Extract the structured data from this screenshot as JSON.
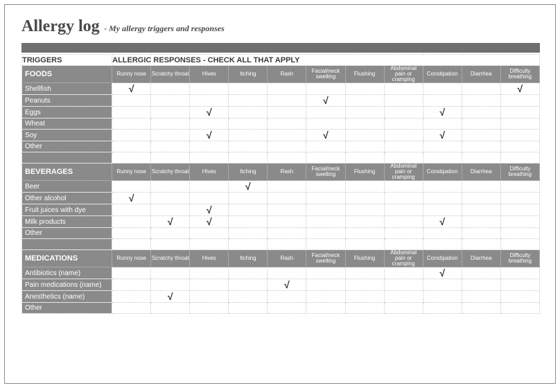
{
  "title": "Allergy log",
  "subtitle": "- My allergy triggers and responses",
  "check_mark": "√",
  "labels": {
    "triggers": "TRIGGERS",
    "responses_header": "ALLERGIC RESPONSES - CHECK ALL THAT APPLY"
  },
  "response_columns": [
    "Runny nose",
    "Scratchy throat",
    "Hives",
    "Itching",
    "Rash",
    "Facial/neck swelling",
    "Flushing",
    "Abdominal pain or cramping",
    "Constipation",
    "Diarrhea",
    "Difficulty breathing"
  ],
  "sections": [
    {
      "name": "FOODS",
      "rows": [
        {
          "label": "Shellfish",
          "checks": [
            1,
            0,
            0,
            0,
            0,
            0,
            0,
            0,
            0,
            0,
            1
          ]
        },
        {
          "label": "Peanuts",
          "checks": [
            0,
            0,
            0,
            0,
            0,
            1,
            0,
            0,
            0,
            0,
            0
          ]
        },
        {
          "label": "Eggs",
          "checks": [
            0,
            0,
            1,
            0,
            0,
            0,
            0,
            0,
            1,
            0,
            0
          ]
        },
        {
          "label": "Wheat",
          "checks": [
            0,
            0,
            0,
            0,
            0,
            0,
            0,
            0,
            0,
            0,
            0
          ]
        },
        {
          "label": "Soy",
          "checks": [
            0,
            0,
            1,
            0,
            0,
            1,
            0,
            0,
            1,
            0,
            0
          ]
        },
        {
          "label": "Other",
          "checks": [
            0,
            0,
            0,
            0,
            0,
            0,
            0,
            0,
            0,
            0,
            0
          ]
        }
      ]
    },
    {
      "name": "BEVERAGES",
      "rows": [
        {
          "label": "Beer",
          "checks": [
            0,
            0,
            0,
            1,
            0,
            0,
            0,
            0,
            0,
            0,
            0
          ]
        },
        {
          "label": "Other alcohol",
          "checks": [
            1,
            0,
            0,
            0,
            0,
            0,
            0,
            0,
            0,
            0,
            0
          ]
        },
        {
          "label": "Fruit juices with dye",
          "checks": [
            0,
            0,
            1,
            0,
            0,
            0,
            0,
            0,
            0,
            0,
            0
          ]
        },
        {
          "label": "Milk products",
          "checks": [
            0,
            1,
            1,
            0,
            0,
            0,
            0,
            0,
            1,
            0,
            0
          ]
        },
        {
          "label": "Other",
          "checks": [
            0,
            0,
            0,
            0,
            0,
            0,
            0,
            0,
            0,
            0,
            0
          ]
        }
      ]
    },
    {
      "name": "MEDICATIONS",
      "rows": [
        {
          "label": "Antibiotics (name)",
          "checks": [
            0,
            0,
            0,
            0,
            0,
            0,
            0,
            0,
            1,
            0,
            0
          ]
        },
        {
          "label": "Pain medications (name)",
          "checks": [
            0,
            0,
            0,
            0,
            1,
            0,
            0,
            0,
            0,
            0,
            0
          ]
        },
        {
          "label": "Anesthetics (name)",
          "checks": [
            0,
            1,
            0,
            0,
            0,
            0,
            0,
            0,
            0,
            0,
            0
          ]
        },
        {
          "label": "Other",
          "checks": [
            0,
            0,
            0,
            0,
            0,
            0,
            0,
            0,
            0,
            0,
            0
          ]
        }
      ]
    }
  ],
  "colors": {
    "header_bg": "#8a8a8a",
    "dark_bar": "#6f6f6f",
    "grid": "#c9c9c9",
    "text_dark": "#4a4a4a"
  }
}
